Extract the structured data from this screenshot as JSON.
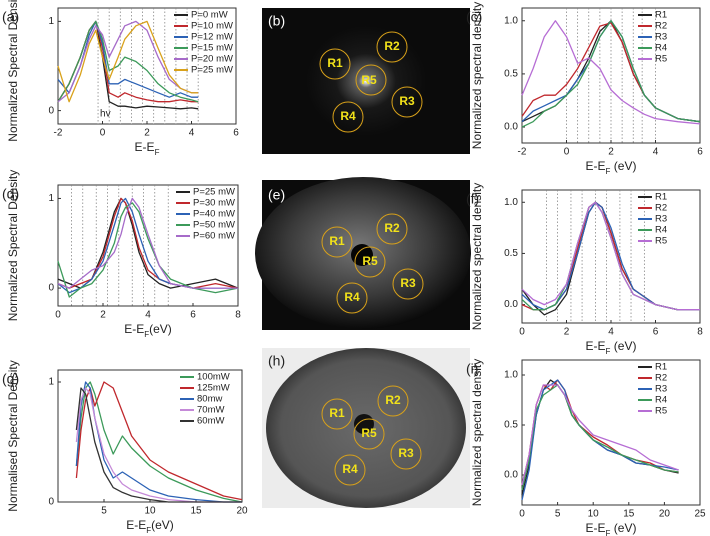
{
  "chart_data": [
    {
      "type": "line",
      "panel_label": "(a)",
      "ylabel": "Normalized Spectral Density",
      "xlabel": [
        "E-E",
        "F"
      ],
      "annotation": "hv",
      "xlim": [
        -2,
        6
      ],
      "xticks": [
        -2,
        0,
        2,
        4,
        6
      ],
      "ylim": [
        -0.15,
        1.15
      ],
      "yticks": [
        0,
        1
      ],
      "legend": "upper right",
      "vlines": [
        -0.2,
        0.3,
        0.8,
        1.3,
        1.8,
        2.3,
        2.8,
        3.3,
        3.8,
        4.3
      ],
      "x": [
        -2,
        -1.5,
        -1,
        -0.6,
        -0.3,
        0,
        0.3,
        0.7,
        1,
        1.5,
        2,
        2.5,
        3,
        3.5,
        4,
        4.3
      ],
      "series": [
        {
          "name": "P=0 mW",
          "color": "#222222",
          "values": [
            0.1,
            0.3,
            0.6,
            0.9,
            1,
            0.6,
            0.1,
            0.05,
            0.05,
            0.03,
            0.05,
            0.04,
            0.03,
            0.02,
            0.03,
            0.02
          ]
        },
        {
          "name": "P=10 mW",
          "color": "#c0282d",
          "values": [
            0.1,
            0.3,
            0.6,
            0.9,
            1,
            0.7,
            0.2,
            0.15,
            0.2,
            0.15,
            0.12,
            0.1,
            0.1,
            0.12,
            0.1,
            0.1
          ]
        },
        {
          "name": "P=12 mW",
          "color": "#2c62b5",
          "values": [
            0.35,
            0.2,
            0.5,
            0.85,
            1,
            0.75,
            0.3,
            0.3,
            0.35,
            0.3,
            0.25,
            0.2,
            0.15,
            0.2,
            0.15,
            0.15
          ]
        },
        {
          "name": "P=15 mW",
          "color": "#3c9a5a",
          "values": [
            0.1,
            0.3,
            0.6,
            0.9,
            1,
            0.8,
            0.45,
            0.5,
            0.6,
            0.55,
            0.45,
            0.3,
            0.2,
            0.15,
            0.12,
            0.1
          ]
        },
        {
          "name": "P=20 mW",
          "color": "#a66bc9",
          "values": [
            0.1,
            0.2,
            0.5,
            0.8,
            0.95,
            0.85,
            0.6,
            0.8,
            0.95,
            1,
            0.9,
            0.6,
            0.35,
            0.25,
            0.2,
            0.2
          ]
        },
        {
          "name": "P=25 mW",
          "color": "#d9a21b",
          "values": [
            0.5,
            0.1,
            0.4,
            0.75,
            0.9,
            0.6,
            0.35,
            0.6,
            0.8,
            0.95,
            1,
            0.7,
            0.4,
            0.25,
            0.2,
            0.2
          ]
        }
      ]
    },
    {
      "type": "line",
      "panel_label": "(c)",
      "ylabel": "Normalized spectral density",
      "xlabel": [
        "E-E",
        "F",
        " (eV)"
      ],
      "xlim": [
        -2,
        6
      ],
      "xticks": [
        -2,
        0,
        2,
        4,
        6
      ],
      "ylim": [
        -0.15,
        1.12
      ],
      "yticks": [
        {
          "value": 0,
          "label": "0.0"
        },
        {
          "value": 0.5,
          "label": "0.5"
        },
        {
          "value": 1,
          "label": "1.0"
        }
      ],
      "legend": "upper right",
      "vlines": [
        0,
        0.5,
        1,
        1.5,
        2,
        2.5,
        3,
        3.4,
        4
      ],
      "x": [
        -2,
        -1.5,
        -1,
        -0.5,
        0,
        0.5,
        1,
        1.5,
        2,
        2.5,
        3,
        3.5,
        4,
        5,
        6
      ],
      "series": [
        {
          "name": "R1",
          "color": "#222222",
          "values": [
            0.05,
            0.1,
            0.15,
            0.2,
            0.3,
            0.45,
            0.65,
            0.9,
            1,
            0.8,
            0.5,
            0.3,
            0.18,
            0.08,
            0.05
          ]
        },
        {
          "name": "R2",
          "color": "#c0282d",
          "values": [
            0.1,
            0.25,
            0.3,
            0.3,
            0.4,
            0.55,
            0.75,
            0.95,
            0.98,
            0.8,
            0.5,
            0.3,
            0.18,
            0.08,
            0.05
          ]
        },
        {
          "name": "R3",
          "color": "#2c62b5",
          "values": [
            0.05,
            0.15,
            0.2,
            0.25,
            0.3,
            0.45,
            0.6,
            0.85,
            1,
            0.85,
            0.55,
            0.3,
            0.18,
            0.08,
            0.05
          ]
        },
        {
          "name": "R4",
          "color": "#3c9a5a",
          "values": [
            0,
            0.05,
            0.15,
            0.2,
            0.3,
            0.4,
            0.6,
            0.85,
            1,
            0.85,
            0.55,
            0.3,
            0.18,
            0.08,
            0.05
          ]
        },
        {
          "name": "R5",
          "color": "#b66dd4",
          "values": [
            0.3,
            0.55,
            0.85,
            1,
            0.85,
            0.6,
            0.65,
            0.55,
            0.35,
            0.25,
            0.18,
            0.12,
            0.08,
            0.05,
            0.03
          ]
        }
      ]
    },
    {
      "type": "line",
      "panel_label": "(d)",
      "ylabel": "Normalized Spectral Density",
      "xlabel": [
        "E-E",
        "F",
        "(eV)"
      ],
      "xlim": [
        0,
        8
      ],
      "xticks": [
        0,
        2,
        4,
        6,
        8
      ],
      "ylim": [
        -0.2,
        1.15
      ],
      "yticks": [
        0,
        1
      ],
      "legend": "upper right",
      "vlines": [
        0.6,
        1.1,
        1.7,
        2.2,
        2.7,
        3.3,
        3.8,
        4.3,
        4.9
      ],
      "x": [
        0,
        0.5,
        1,
        1.5,
        2,
        2.5,
        2.8,
        3,
        3.3,
        3.6,
        4,
        4.5,
        5,
        6,
        7,
        8
      ],
      "series": [
        {
          "name": "P=25 mW",
          "color": "#222222",
          "values": [
            0.1,
            0.05,
            0,
            0.1,
            0.4,
            0.85,
            1,
            0.95,
            0.7,
            0.4,
            0.15,
            0.05,
            0,
            0.05,
            0.1,
            0
          ]
        },
        {
          "name": "P=30 mW",
          "color": "#c0282d",
          "values": [
            0.05,
            0,
            0.05,
            0.1,
            0.35,
            0.8,
            1,
            0.95,
            0.75,
            0.45,
            0.2,
            0.1,
            0.05,
            0,
            0.05,
            0
          ]
        },
        {
          "name": "P=40 mW",
          "color": "#2c62b5",
          "values": [
            0.05,
            -0.05,
            0,
            0.1,
            0.3,
            0.7,
            0.95,
            1,
            0.85,
            0.6,
            0.3,
            0.1,
            0.05,
            0,
            0,
            0
          ]
        },
        {
          "name": "P=50 mW",
          "color": "#3c9a5a",
          "values": [
            0.3,
            -0.1,
            0,
            0.05,
            0.2,
            0.5,
            0.8,
            0.9,
            0.95,
            0.85,
            0.55,
            0.25,
            0.1,
            0,
            -0.05,
            0
          ]
        },
        {
          "name": "P=60 mW",
          "color": "#a66bc9",
          "values": [
            0.05,
            0,
            0.1,
            0.2,
            0.25,
            0.4,
            0.6,
            0.8,
            1,
            0.9,
            0.6,
            0.25,
            0.05,
            0,
            0,
            0
          ]
        }
      ]
    },
    {
      "type": "line",
      "panel_label": "(f)",
      "ylabel": "Normalized spectral density",
      "xlabel": [
        "E-E",
        "F",
        " (eV)"
      ],
      "xlim": [
        0,
        8
      ],
      "xticks": [
        0,
        2,
        4,
        6,
        8
      ],
      "ylim": [
        -0.18,
        1.12
      ],
      "yticks": [
        {
          "value": 0,
          "label": "0.0"
        },
        {
          "value": 0.5,
          "label": "0.5"
        },
        {
          "value": 1,
          "label": "1.0"
        }
      ],
      "legend": "upper right",
      "vlines": [
        1.1,
        1.6,
        2.2,
        2.7,
        3.3,
        3.8,
        4.4,
        4.9,
        5.5
      ],
      "x": [
        0,
        0.5,
        1,
        1.5,
        2,
        2.5,
        3,
        3.3,
        3.6,
        4,
        4.5,
        5,
        6,
        7,
        8
      ],
      "series": [
        {
          "name": "R1",
          "color": "#222222",
          "values": [
            0.15,
            0,
            -0.1,
            -0.05,
            0.1,
            0.5,
            0.9,
            1,
            0.95,
            0.7,
            0.35,
            0.15,
            0,
            -0.05,
            -0.05
          ]
        },
        {
          "name": "R2",
          "color": "#c0282d",
          "values": [
            0,
            -0.05,
            -0.05,
            0,
            0.15,
            0.55,
            0.95,
            1,
            0.95,
            0.7,
            0.35,
            0.15,
            0,
            -0.05,
            -0.05
          ]
        },
        {
          "name": "R3",
          "color": "#2c62b5",
          "values": [
            0.1,
            0,
            -0.05,
            0,
            0.15,
            0.5,
            0.9,
            1,
            0.95,
            0.75,
            0.4,
            0.15,
            0,
            -0.05,
            -0.05
          ]
        },
        {
          "name": "R4",
          "color": "#3c9a5a",
          "values": [
            0.05,
            -0.05,
            -0.05,
            0,
            0.2,
            0.6,
            0.95,
            1,
            0.9,
            0.65,
            0.3,
            0.1,
            0,
            -0.05,
            -0.05
          ]
        },
        {
          "name": "R5",
          "color": "#b66dd4",
          "values": [
            0.15,
            0.05,
            0,
            0.05,
            0.2,
            0.6,
            0.95,
            1,
            0.9,
            0.65,
            0.3,
            0.1,
            0,
            -0.05,
            -0.05
          ]
        }
      ]
    },
    {
      "type": "line",
      "panel_label": "(g)",
      "ylabel": "Normalised Spectral Density",
      "xlabel": [
        "E-E",
        "F",
        "(eV)"
      ],
      "xlim": [
        0,
        20
      ],
      "xticks": [
        5,
        10,
        15,
        20
      ],
      "ylim": [
        0,
        1.1
      ],
      "yticks": [
        0,
        1
      ],
      "legend": "upper right",
      "x": [
        2,
        2.5,
        3,
        3.5,
        4,
        5,
        6,
        7,
        8,
        10,
        12,
        15,
        18,
        20
      ],
      "series": [
        {
          "name": "100mW",
          "color": "#3c9a5a",
          "values": [
            0.3,
            0.7,
            0.95,
            1,
            0.9,
            0.6,
            0.4,
            0.55,
            0.45,
            0.3,
            0.2,
            0.1,
            0.03,
            0
          ]
        },
        {
          "name": "125mW",
          "color": "#c0282d",
          "values": [
            0.2,
            0.6,
            0.85,
            0.95,
            0.8,
            1,
            0.95,
            0.75,
            0.55,
            0.35,
            0.25,
            0.15,
            0.05,
            0.02
          ]
        },
        {
          "name": "80mw",
          "color": "#2c62b5",
          "values": [
            0.3,
            0.8,
            1,
            0.95,
            0.7,
            0.35,
            0.2,
            0.25,
            0.2,
            0.1,
            0.05,
            0.02,
            0,
            0
          ]
        },
        {
          "name": "70mW",
          "color": "#c58ad8",
          "values": [
            0.5,
            0.85,
            0.95,
            0.9,
            0.7,
            0.4,
            0.25,
            0.15,
            0.1,
            0.05,
            0.02,
            0,
            0,
            0
          ]
        },
        {
          "name": "60mW",
          "color": "#333333",
          "values": [
            0.6,
            0.95,
            0.9,
            0.7,
            0.5,
            0.25,
            0.12,
            0.08,
            0.05,
            0.02,
            0,
            0,
            0,
            0
          ]
        }
      ]
    },
    {
      "type": "line",
      "panel_label": "(i)",
      "ylabel": "Normalized spectral density",
      "xlabel": [
        "E-E",
        "F",
        " (eV)"
      ],
      "xlim": [
        0,
        25
      ],
      "xticks": [
        0,
        5,
        10,
        15,
        20,
        25
      ],
      "ylim": [
        -0.3,
        1.15
      ],
      "yticks": [
        {
          "value": 0,
          "label": "0.0"
        },
        {
          "value": 0.5,
          "label": "0.5"
        },
        {
          "value": 1,
          "label": "1.0"
        }
      ],
      "legend": "upper right",
      "x": [
        0,
        1,
        2,
        3,
        4,
        5,
        6,
        7,
        8,
        10,
        12,
        14,
        16,
        18,
        20,
        22
      ],
      "series": [
        {
          "name": "R1",
          "color": "#222222",
          "values": [
            -0.2,
            0.1,
            0.6,
            0.85,
            0.95,
            0.9,
            0.8,
            0.6,
            0.5,
            0.35,
            0.25,
            0.2,
            0.12,
            0.1,
            0.05,
            0.02
          ]
        },
        {
          "name": "R2",
          "color": "#c0282d",
          "values": [
            -0.1,
            0.2,
            0.7,
            0.9,
            0.85,
            0.95,
            0.85,
            0.65,
            0.5,
            0.38,
            0.3,
            0.2,
            0.15,
            0.12,
            0.05,
            0.03
          ]
        },
        {
          "name": "R3",
          "color": "#2c62b5",
          "values": [
            -0.25,
            0.05,
            0.6,
            0.85,
            0.9,
            0.95,
            0.85,
            0.6,
            0.5,
            0.35,
            0.25,
            0.2,
            0.12,
            0.1,
            0.08,
            0.05
          ]
        },
        {
          "name": "R4",
          "color": "#3c9a5a",
          "values": [
            -0.15,
            0.15,
            0.65,
            0.8,
            0.85,
            0.9,
            0.8,
            0.6,
            0.5,
            0.35,
            0.28,
            0.2,
            0.15,
            0.1,
            0.05,
            0.03
          ]
        },
        {
          "name": "R5",
          "color": "#b66dd4",
          "values": [
            -0.1,
            0.2,
            0.7,
            0.9,
            0.9,
            0.9,
            0.8,
            0.65,
            0.55,
            0.4,
            0.35,
            0.3,
            0.25,
            0.15,
            0.1,
            0.05
          ]
        }
      ]
    }
  ],
  "images": [
    {
      "panel_label": "(b)",
      "labels": [
        "R1",
        "R2",
        "R5",
        "R3",
        "R4"
      ]
    },
    {
      "panel_label": "(e)",
      "labels": [
        "R1",
        "R2",
        "R5",
        "R3",
        "R4"
      ]
    },
    {
      "panel_label": "(h)",
      "labels": [
        "R1",
        "R2",
        "R5",
        "R3",
        "R4"
      ]
    }
  ]
}
